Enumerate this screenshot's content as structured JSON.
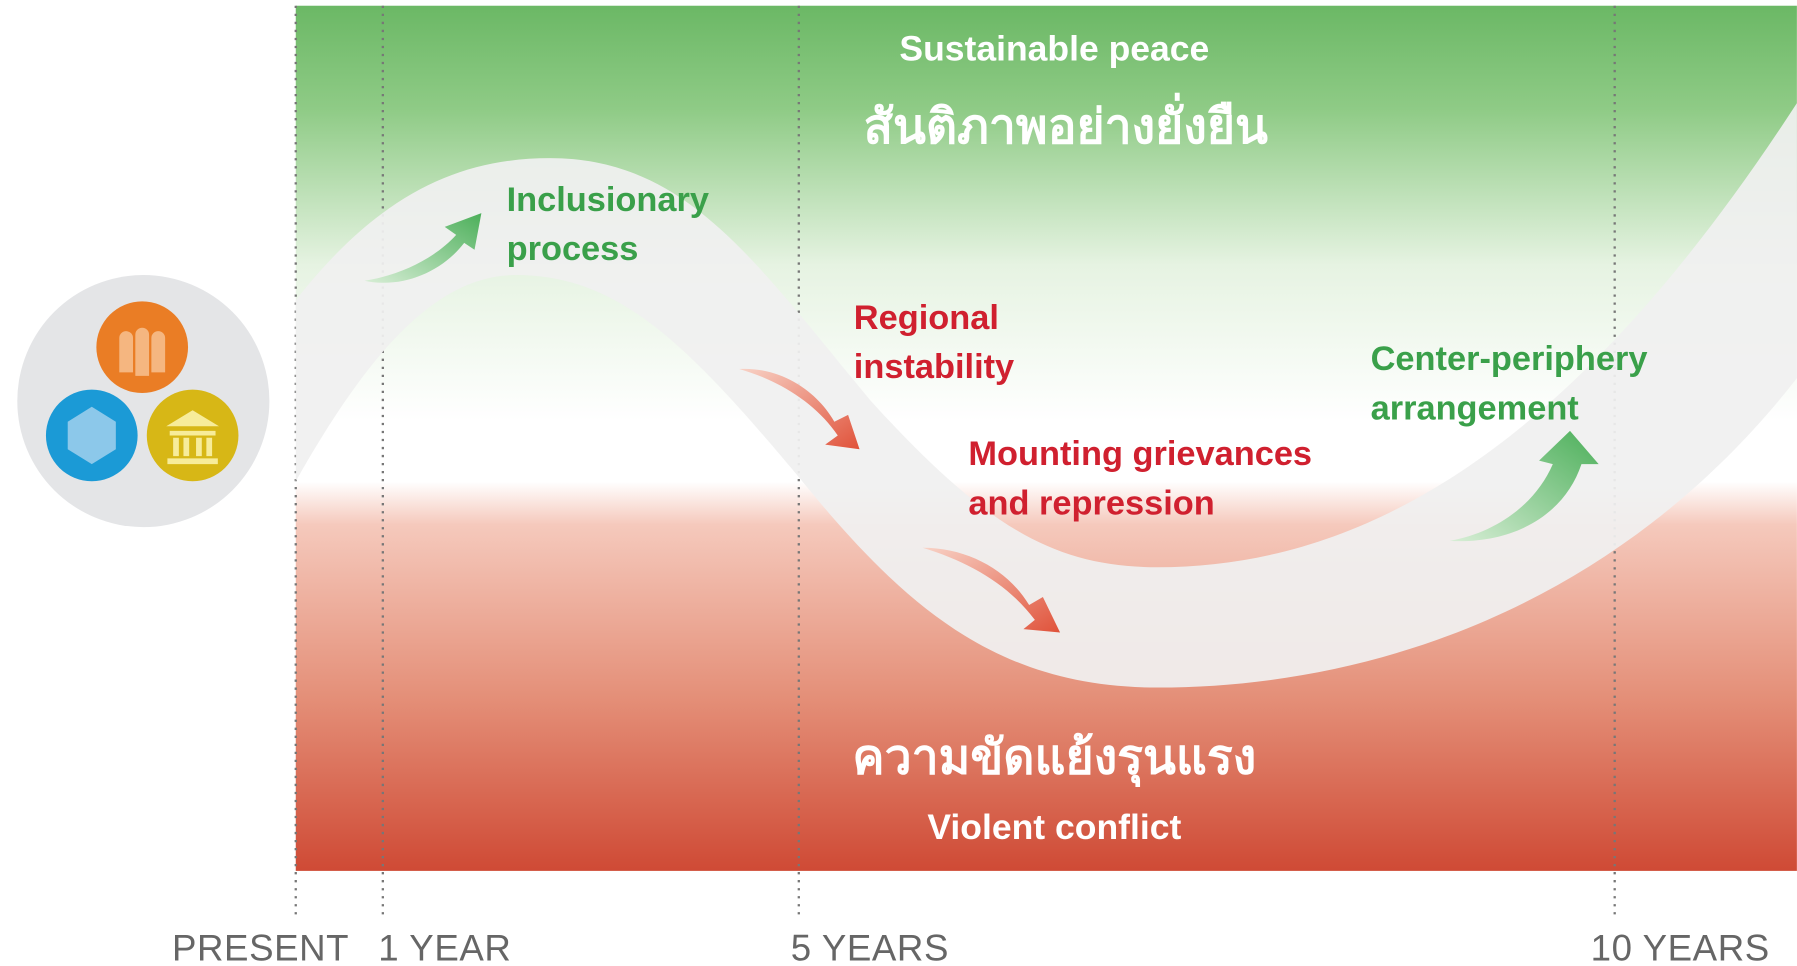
{
  "top_label": "Sustainable peace",
  "top_label_thai": "สันติภาพอย่างยั่งยืน",
  "bottom_label_thai": "ความขัดแย้งรุนแรง",
  "bottom_label": "Violent conflict",
  "stages": [
    {
      "lines": [
        "Inclusionary",
        "process"
      ]
    },
    {
      "lines": [
        "Regional",
        "instability"
      ]
    },
    {
      "lines": [
        "Mounting grievances",
        "and repression"
      ]
    },
    {
      "lines": [
        "Center-periphery",
        "arrangement"
      ]
    }
  ],
  "timeline": [
    "PRESENT",
    "1 YEAR",
    "5 YEARS",
    "10 YEARS"
  ]
}
